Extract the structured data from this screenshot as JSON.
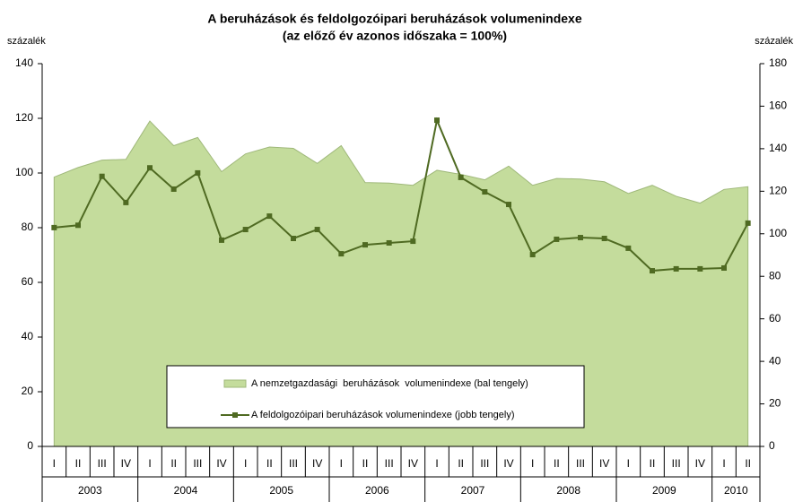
{
  "chart_data": {
    "type": "area-line",
    "title": "A beruházások és feldolgozóipari beruházások volumenindexe",
    "subtitle": "(az előző év azonos időszaka = 100%)",
    "ylabel": "százalék",
    "y2label": "százalék",
    "categories": [
      "I",
      "II",
      "III",
      "IV",
      "I",
      "II",
      "III",
      "IV",
      "I",
      "II",
      "III",
      "IV",
      "I",
      "II",
      "III",
      "IV",
      "I",
      "II",
      "III",
      "IV",
      "I",
      "II",
      "III",
      "IV",
      "I",
      "II",
      "III",
      "IV",
      "I",
      "II"
    ],
    "years": [
      "2003",
      "2004",
      "2005",
      "2006",
      "2007",
      "2008",
      "2009",
      "2010"
    ],
    "ylim": [
      0,
      140
    ],
    "yticks": [
      0,
      20,
      40,
      60,
      80,
      100,
      120,
      140
    ],
    "y2lim": [
      0,
      180
    ],
    "y2ticks": [
      0,
      20,
      40,
      60,
      80,
      100,
      120,
      140,
      160,
      180
    ],
    "legend": "bottom",
    "series": [
      {
        "name": "A nemzetgazdasági  beruházások  volumenindexe (bal tengely)",
        "type": "area",
        "axis": "y",
        "color": "#c4dc9c",
        "values": [
          98.5,
          102,
          104.7,
          105,
          119,
          110,
          113,
          100.5,
          107,
          109.5,
          109,
          103.5,
          110,
          96.5,
          96.3,
          95.5,
          101,
          99.5,
          97.5,
          102.5,
          95.5,
          98,
          97.8,
          96.8,
          92.5,
          95.5,
          91.5,
          89,
          94,
          95
        ]
      },
      {
        "name": "A feldolgozóipari beruházások volumenindexe (jobb tengely)",
        "type": "line",
        "axis": "y2",
        "color": "#4f6a22",
        "values": [
          102.9,
          104,
          127,
          114.7,
          131,
          121,
          128.6,
          97,
          102,
          108.3,
          97.8,
          102,
          90.6,
          94.8,
          95.7,
          96.5,
          153.4,
          126.5,
          119.7,
          113.8,
          90.2,
          97.4,
          98.2,
          97.8,
          93.2,
          82.6,
          83.5,
          83.5,
          83.9,
          105
        ]
      }
    ]
  }
}
